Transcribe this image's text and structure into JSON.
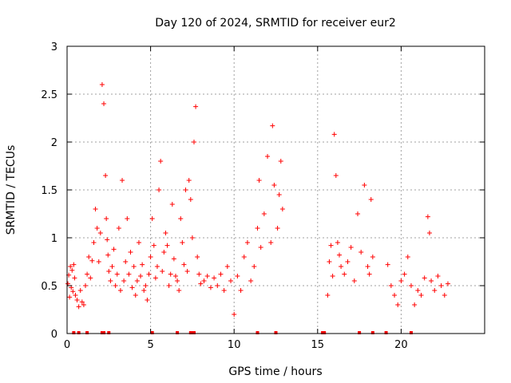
{
  "chart_data": {
    "type": "scatter",
    "title": "Day 120 of 2024, SRMTID for receiver eur2",
    "xlabel": "GPS time / hours",
    "ylabel": "SRMTID / TECUs",
    "xlim": [
      0,
      25
    ],
    "ylim": [
      0,
      3
    ],
    "xticks": [
      0,
      5,
      10,
      15,
      20
    ],
    "xtick_labels": [
      "0",
      "5",
      "10",
      "15",
      "20"
    ],
    "yticks": [
      0,
      0.5,
      1,
      1.5,
      2,
      2.5,
      3
    ],
    "ytick_labels": [
      "0",
      "0.5",
      "1",
      "1.5",
      "2",
      "2.5",
      "3"
    ],
    "grid": true,
    "marker": "+",
    "color": "#ff0000",
    "series": [
      {
        "name": "SRMTID",
        "x": [
          0.05,
          0.1,
          0.15,
          0.2,
          0.25,
          0.3,
          0.35,
          0.4,
          0.45,
          0.5,
          0.6,
          0.7,
          0.8,
          0.9,
          1.0,
          1.1,
          1.2,
          1.3,
          1.4,
          1.5,
          1.6,
          1.7,
          1.8,
          1.9,
          2.0,
          2.1,
          2.2,
          2.3,
          2.35,
          2.4,
          2.45,
          2.5,
          2.6,
          2.7,
          2.8,
          2.9,
          3.0,
          3.1,
          3.2,
          3.3,
          3.4,
          3.5,
          3.6,
          3.7,
          3.8,
          3.9,
          4.0,
          4.1,
          4.2,
          4.3,
          4.4,
          4.5,
          4.6,
          4.7,
          4.8,
          4.9,
          5.0,
          5.1,
          5.2,
          5.3,
          5.4,
          5.5,
          5.6,
          5.7,
          5.8,
          5.9,
          6.0,
          6.1,
          6.2,
          6.3,
          6.4,
          6.5,
          6.6,
          6.7,
          6.8,
          6.9,
          7.0,
          7.1,
          7.2,
          7.3,
          7.4,
          7.5,
          7.6,
          7.7,
          7.8,
          7.9,
          8.0,
          8.2,
          8.4,
          8.6,
          8.8,
          9.0,
          9.2,
          9.4,
          9.6,
          9.8,
          10.0,
          10.2,
          10.4,
          10.6,
          10.8,
          11.0,
          11.2,
          11.4,
          11.5,
          11.6,
          11.8,
          12.0,
          12.2,
          12.3,
          12.4,
          12.6,
          12.7,
          12.8,
          12.9,
          15.6,
          15.7,
          15.8,
          15.9,
          16.0,
          16.1,
          16.2,
          16.3,
          16.4,
          16.6,
          16.8,
          17.0,
          17.2,
          17.4,
          17.6,
          17.8,
          18.0,
          18.1,
          18.2,
          18.3,
          19.2,
          19.4,
          19.6,
          19.8,
          20.0,
          20.2,
          20.4,
          20.6,
          20.8,
          21.0,
          21.2,
          21.4,
          21.6,
          21.7,
          21.8,
          22.0,
          22.2,
          22.4,
          22.6,
          22.8
        ],
        "y": [
          0.52,
          0.61,
          0.38,
          0.7,
          0.48,
          0.66,
          0.44,
          0.72,
          0.58,
          0.4,
          0.35,
          0.28,
          0.45,
          0.33,
          0.3,
          0.5,
          0.62,
          0.8,
          0.58,
          0.76,
          0.95,
          1.3,
          1.1,
          0.75,
          1.05,
          2.6,
          2.4,
          1.65,
          1.2,
          0.98,
          0.82,
          0.65,
          0.55,
          0.7,
          0.88,
          0.5,
          0.62,
          1.1,
          0.45,
          1.6,
          0.55,
          0.75,
          1.2,
          0.62,
          0.85,
          0.48,
          0.7,
          0.4,
          0.55,
          0.95,
          0.6,
          0.72,
          0.45,
          0.5,
          0.35,
          0.62,
          0.8,
          1.2,
          0.92,
          0.58,
          0.7,
          1.5,
          1.8,
          0.65,
          0.85,
          1.05,
          0.92,
          0.5,
          0.62,
          1.35,
          0.78,
          0.6,
          0.55,
          0.45,
          1.2,
          0.95,
          0.72,
          1.5,
          0.65,
          1.6,
          1.4,
          1.0,
          2.0,
          2.37,
          0.8,
          0.62,
          0.52,
          0.55,
          0.6,
          0.48,
          0.58,
          0.5,
          0.62,
          0.45,
          0.7,
          0.55,
          0.2,
          0.6,
          0.45,
          0.8,
          0.95,
          0.55,
          0.7,
          1.1,
          1.6,
          0.9,
          1.25,
          1.85,
          0.95,
          2.17,
          1.55,
          1.1,
          1.45,
          1.8,
          1.3,
          0.4,
          0.75,
          0.92,
          0.6,
          2.08,
          1.65,
          0.95,
          0.82,
          0.7,
          0.62,
          0.75,
          0.9,
          0.55,
          1.25,
          0.85,
          1.55,
          0.7,
          0.62,
          1.4,
          0.8,
          0.72,
          0.5,
          0.4,
          0.3,
          0.55,
          0.62,
          0.8,
          0.5,
          0.3,
          0.45,
          0.4,
          0.58,
          1.22,
          1.05,
          0.55,
          0.45,
          0.6,
          0.5,
          0.4,
          0.52
        ]
      }
    ],
    "markers_on_axis": [
      0.4,
      0.7,
      1.2,
      2.1,
      2.2,
      2.5,
      5.1,
      6.6,
      7.4,
      7.5,
      7.6,
      11.4,
      12.5,
      15.3,
      15.4,
      17.5,
      18.3,
      19.1,
      20.6
    ]
  }
}
